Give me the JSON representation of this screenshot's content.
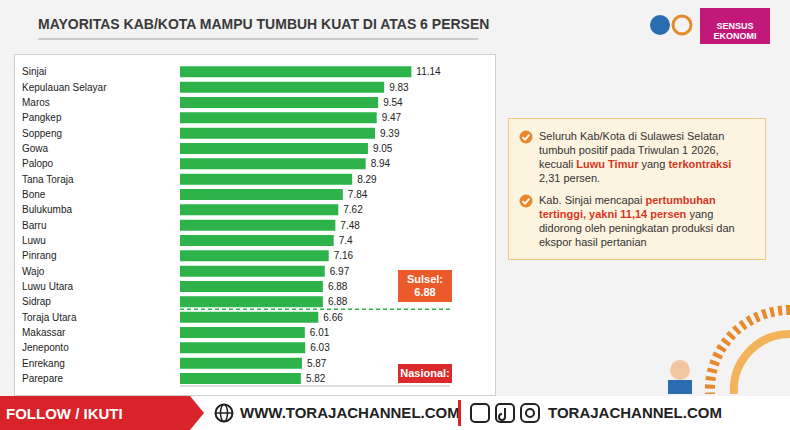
{
  "chart_data": {
    "type": "bar",
    "orientation": "horizontal",
    "title": "MAYORITAS KAB/KOTA MAMPU TUMBUH KUAT DI ATAS 6 PERSEN",
    "logo": "SENSUS EKONOMI",
    "categories": [
      "Sinjai",
      "Kepulauan Selayar",
      "Maros",
      "Pangkep",
      "Soppeng",
      "Gowa",
      "Palopo",
      "Tana Toraja",
      "Bone",
      "Bulukumba",
      "Barru",
      "Luwu",
      "Pinrang",
      "Wajo",
      "Luwu Utara",
      "Sidrap",
      "Toraja Utara",
      "Makassar",
      "Jeneponto",
      "Enrekang",
      "Parepare"
    ],
    "values": [
      11.14,
      9.83,
      9.54,
      9.47,
      9.39,
      9.05,
      8.94,
      8.29,
      7.84,
      7.62,
      7.48,
      7.4,
      7.16,
      6.97,
      6.88,
      6.88,
      6.66,
      6.01,
      6.03,
      5.87,
      5.82
    ],
    "color": "#2db34a",
    "xlim": [
      0,
      13
    ],
    "xticks": [],
    "tick_labels": "y",
    "data_labels": true,
    "grid": false,
    "annotations": [
      {
        "text": "Sulsel:",
        "value": 6.88
      },
      {
        "text": "Nasional:"
      }
    ],
    "notes": [
      [
        {
          "text": "Seluruh Kab/Kota di Sulawesi Selatan tumbuh positif pada Triwulan 1 2026, kecuali ",
          "emphasis": false
        },
        {
          "text": "Luwu Timur",
          "emphasis": true
        },
        {
          "text": " yang ",
          "emphasis": false
        },
        {
          "text": "terkontraksi",
          "emphasis": true
        },
        {
          "text": " 2,31 persen.",
          "emphasis": false
        }
      ],
      [
        {
          "text": "Kab. Sinjai",
          "emphasis": false
        },
        {
          "text": " mencapai ",
          "emphasis": false
        },
        {
          "text": "pertumbuhan tertinggi, yakni 11,14 persen",
          "emphasis": true
        },
        {
          "text": " yang didorong oleh peningkatan produksi dan ekspor hasil pertanian",
          "emphasis": false
        }
      ]
    ],
    "footer": {
      "follow": "FOLLOW / IKUTI",
      "website": "WWW.TORAJACHANNEL.COM",
      "social": "TORAJACHANNEL.COM"
    }
  }
}
